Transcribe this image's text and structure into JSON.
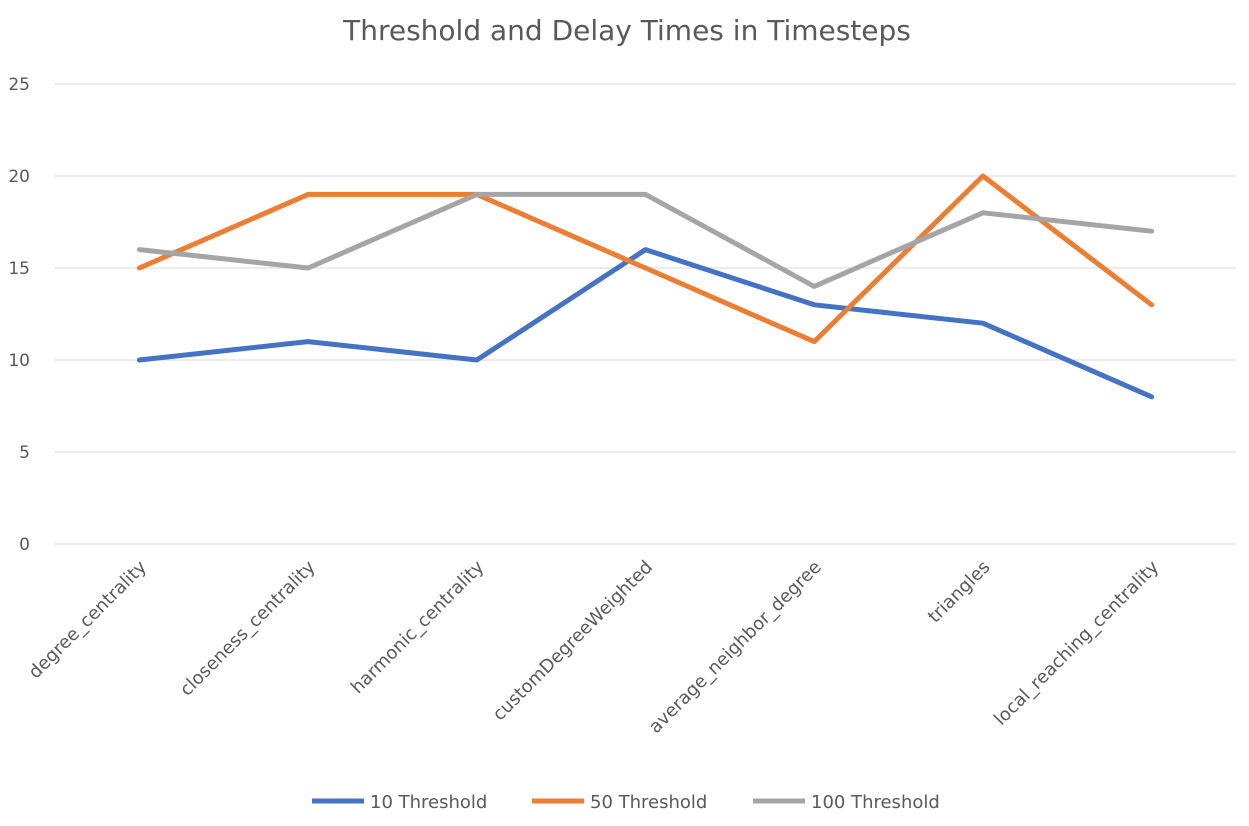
{
  "chart_data": {
    "type": "line",
    "title": "Threshold and Delay Times in Timesteps",
    "xlabel": "",
    "ylabel": "",
    "ylim": [
      0,
      25
    ],
    "yticks": [
      0,
      5,
      10,
      15,
      20,
      25
    ],
    "grid": true,
    "legend_position": "bottom",
    "categories": [
      "degree_centrality",
      "closeness_centrality",
      "harmonic_centrality",
      "customDegreeWeighted",
      "average_neighbor_degree",
      "triangles",
      "local_reaching_centrality"
    ],
    "series": [
      {
        "name": "10 Threshold",
        "color": "#4472c4",
        "values": [
          10,
          11,
          10,
          16,
          13,
          12,
          8
        ]
      },
      {
        "name": "50 Threshold",
        "color": "#ed7d31",
        "values": [
          15,
          19,
          19,
          15,
          11,
          20,
          13
        ]
      },
      {
        "name": "100 Threshold",
        "color": "#a5a5a5",
        "values": [
          16,
          15,
          19,
          19,
          14,
          18,
          17
        ]
      }
    ]
  }
}
